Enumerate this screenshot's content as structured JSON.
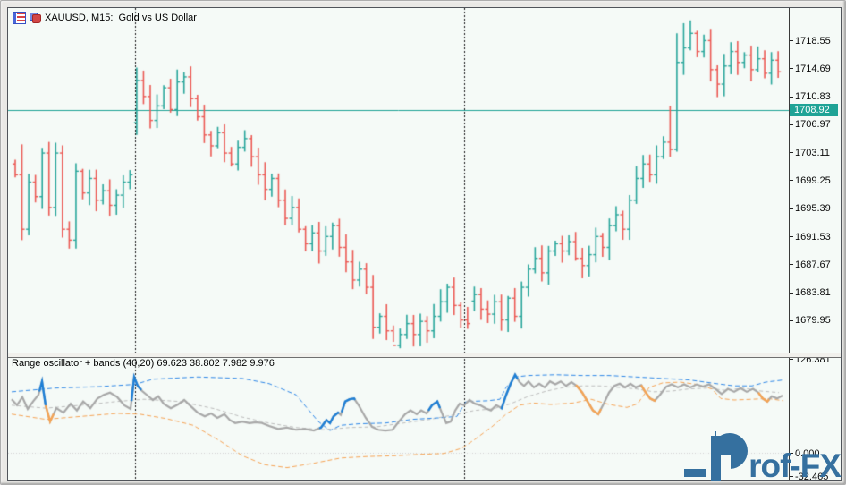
{
  "window": {
    "title": "XAUUSD, M15:  Gold vs US Dollar"
  },
  "indicator_label": "Range oscillator + bands (40,20) 69.623 38.802 7.982 9.976",
  "watermark_text": "rof-FX",
  "price_axis": {
    "ticks": [
      "1718.55",
      "1714.69",
      "1710.83",
      "1706.97",
      "1703.11",
      "1699.25",
      "1695.39",
      "1691.53",
      "1687.67",
      "1683.81",
      "1679.95"
    ],
    "current_price": "1708.92"
  },
  "sub_axis": {
    "top": "126.381",
    "zero": "0.000",
    "bottom": "-32.465"
  },
  "colors": {
    "bull": "#2aa79c",
    "bear": "#ec5a55",
    "price_line": "#1fa396",
    "separator": "#141414",
    "osc_main": "#a8a8a8",
    "osc_blue": "#1e7fd6",
    "osc_orange": "#f5a455",
    "band_upper": "#2f88e8",
    "band_lower": "#f5a455",
    "band_mid": "#bdbdbd",
    "zero_line": "#d2d2d2",
    "background": "#f5faf7"
  },
  "chart_data": {
    "type": "ohlc-bar",
    "symbol": "XAUUSD",
    "timeframe": "M15",
    "title": "Gold vs US Dollar",
    "price_line_value": 1708.92,
    "y_ticks": [
      1718.55,
      1714.69,
      1710.83,
      1706.97,
      1703.11,
      1699.25,
      1695.39,
      1691.53,
      1687.67,
      1683.81,
      1679.95
    ],
    "first_open": 1701.5,
    "closes": [
      1700.0,
      1692.5,
      1699.0,
      1697.0,
      1703.0,
      1695.5,
      1703.0,
      1692.5,
      1691.0,
      1700.5,
      1697.5,
      1699.5,
      1696.5,
      1697.8,
      1695.8,
      1697.2,
      1699.0,
      1700.0,
      1713.0,
      1710.8,
      1707.5,
      1709.5,
      1712.0,
      1709.0,
      1712.8,
      1713.5,
      1710.5,
      1708.0,
      1705.5,
      1704.0,
      1705.8,
      1703.0,
      1701.5,
      1703.8,
      1705.0,
      1702.5,
      1700.0,
      1698.0,
      1699.5,
      1696.5,
      1694.0,
      1695.5,
      1692.5,
      1690.5,
      1692.0,
      1689.5,
      1691.5,
      1693.0,
      1690.0,
      1688.0,
      1685.5,
      1687.0,
      1684.5,
      1679.0,
      1680.5,
      1678.5,
      1676.5,
      1678.0,
      1679.5,
      1678.0,
      1679.8,
      1678.5,
      1680.5,
      1682.5,
      1684.5,
      1682.0,
      1680.0,
      1679.5,
      1683.5,
      1681.5,
      1680.8,
      1682.5,
      1680.0,
      1683.0,
      1680.5,
      1684.5,
      1687.0,
      1688.5,
      1686.5,
      1689.5,
      1690.5,
      1689.5,
      1690.8,
      1688.5,
      1687.5,
      1689.0,
      1691.5,
      1690.0,
      1693.0,
      1694.5,
      1692.5,
      1696.5,
      1699.5,
      1701.5,
      1700.0,
      1702.5,
      1704.5,
      1703.5,
      1715.5,
      1717.5,
      1719.5,
      1717.0,
      1718.5,
      1714.5,
      1712.5,
      1715.0,
      1717.0,
      1715.5,
      1716.5,
      1714.5,
      1716.0,
      1714.0,
      1715.8,
      1714.2
    ],
    "gap_opens": {
      "18": 1707.2,
      "68": 1682.6
    },
    "hl_overrides": {
      "1": [
        1704.2,
        1691.0
      ],
      "53": [
        1686.2,
        1677.4
      ],
      "56": [
        null,
        1677.0
      ],
      "57": [
        null,
        1676.1
      ],
      "97": [
        1709.5,
        null
      ],
      "98": [
        1719.5,
        1703.2
      ],
      "99": [
        1720.9,
        null
      ],
      "100": [
        1721.3,
        null
      ]
    },
    "separators_x": [
      150,
      518
    ],
    "oscillator": {
      "scale": {
        "top_value": 126.381,
        "zero_value": 0.0
      },
      "main": [
        [
          12,
          72
        ],
        [
          18,
          64
        ],
        [
          24,
          75
        ],
        [
          30,
          59
        ],
        [
          36,
          69
        ],
        [
          42,
          78
        ],
        [
          46,
          96
        ],
        [
          50,
          64
        ],
        [
          55,
          42
        ],
        [
          62,
          60
        ],
        [
          70,
          54
        ],
        [
          78,
          66
        ],
        [
          85,
          57
        ],
        [
          92,
          69
        ],
        [
          100,
          60
        ],
        [
          108,
          73
        ],
        [
          115,
          78
        ],
        [
          122,
          81
        ],
        [
          130,
          75
        ],
        [
          138,
          64
        ],
        [
          145,
          59
        ],
        [
          149,
          102
        ],
        [
          153,
          90
        ],
        [
          158,
          83
        ],
        [
          164,
          77
        ],
        [
          170,
          71
        ],
        [
          176,
          76
        ],
        [
          182,
          66
        ],
        [
          190,
          60
        ],
        [
          198,
          65
        ],
        [
          205,
          71
        ],
        [
          212,
          63
        ],
        [
          220,
          54
        ],
        [
          228,
          49
        ],
        [
          235,
          53
        ],
        [
          242,
          47
        ],
        [
          250,
          52
        ],
        [
          256,
          44
        ],
        [
          262,
          40
        ],
        [
          270,
          42
        ],
        [
          278,
          40
        ],
        [
          285,
          41
        ],
        [
          292,
          40
        ],
        [
          300,
          36
        ],
        [
          310,
          32
        ],
        [
          320,
          34
        ],
        [
          330,
          31
        ],
        [
          340,
          32
        ],
        [
          350,
          30
        ],
        [
          358,
          34
        ],
        [
          364,
          44
        ],
        [
          368,
          40
        ],
        [
          372,
          49
        ],
        [
          377,
          54
        ],
        [
          380,
          51
        ],
        [
          385,
          69
        ],
        [
          390,
          72
        ],
        [
          395,
          73
        ],
        [
          400,
          64
        ],
        [
          408,
          47
        ],
        [
          415,
          35
        ],
        [
          422,
          31
        ],
        [
          430,
          30
        ],
        [
          438,
          31
        ],
        [
          445,
          42
        ],
        [
          452,
          52
        ],
        [
          458,
          57
        ],
        [
          465,
          52
        ],
        [
          470,
          57
        ],
        [
          476,
          53
        ],
        [
          482,
          64
        ],
        [
          488,
          69
        ],
        [
          493,
          54
        ],
        [
          498,
          40
        ],
        [
          503,
          42
        ],
        [
          508,
          57
        ],
        [
          513,
          66
        ],
        [
          518,
          64
        ],
        [
          524,
          71
        ],
        [
          530,
          66
        ],
        [
          536,
          64
        ],
        [
          542,
          60
        ],
        [
          548,
          57
        ],
        [
          554,
          64
        ],
        [
          560,
          60
        ],
        [
          565,
          78
        ],
        [
          570,
          93
        ],
        [
          575,
          105
        ],
        [
          580,
          95
        ],
        [
          585,
          90
        ],
        [
          590,
          96
        ],
        [
          596,
          88
        ],
        [
          602,
          93
        ],
        [
          608,
          88
        ],
        [
          614,
          96
        ],
        [
          620,
          92
        ],
        [
          626,
          96
        ],
        [
          632,
          90
        ],
        [
          638,
          95
        ],
        [
          644,
          90
        ],
        [
          650,
          81
        ],
        [
          656,
          69
        ],
        [
          662,
          57
        ],
        [
          668,
          52
        ],
        [
          674,
          66
        ],
        [
          680,
          81
        ],
        [
          686,
          90
        ],
        [
          692,
          93
        ],
        [
          698,
          88
        ],
        [
          704,
          93
        ],
        [
          710,
          88
        ],
        [
          716,
          91
        ],
        [
          720,
          83
        ],
        [
          726,
          73
        ],
        [
          731,
          70
        ],
        [
          737,
          78
        ],
        [
          744,
          89
        ],
        [
          750,
          92
        ],
        [
          757,
          88
        ],
        [
          764,
          92
        ],
        [
          771,
          88
        ],
        [
          778,
          92
        ],
        [
          785,
          89
        ],
        [
          792,
          92
        ],
        [
          799,
          86
        ],
        [
          806,
          79
        ],
        [
          813,
          86
        ],
        [
          820,
          82
        ],
        [
          827,
          87
        ],
        [
          834,
          82
        ],
        [
          841,
          86
        ],
        [
          847,
          81
        ],
        [
          852,
          73
        ],
        [
          857,
          69
        ],
        [
          862,
          76
        ],
        [
          868,
          73
        ],
        [
          874,
          77
        ]
      ],
      "upper": [
        [
          12,
          82
        ],
        [
          60,
          87
        ],
        [
          110,
          89
        ],
        [
          150,
          92
        ],
        [
          170,
          99
        ],
        [
          220,
          102
        ],
        [
          270,
          100
        ],
        [
          300,
          93
        ],
        [
          330,
          78
        ],
        [
          355,
          42
        ],
        [
          368,
          30
        ],
        [
          380,
          37
        ],
        [
          400,
          39
        ],
        [
          430,
          40
        ],
        [
          460,
          45
        ],
        [
          490,
          47
        ],
        [
          510,
          49
        ],
        [
          520,
          69
        ],
        [
          545,
          70
        ],
        [
          558,
          72
        ],
        [
          565,
          88
        ],
        [
          575,
          102
        ],
        [
          590,
          104
        ],
        [
          620,
          105
        ],
        [
          650,
          104
        ],
        [
          680,
          104
        ],
        [
          710,
          102
        ],
        [
          740,
          100
        ],
        [
          770,
          98
        ],
        [
          800,
          93
        ],
        [
          820,
          90
        ],
        [
          840,
          90
        ],
        [
          855,
          95
        ],
        [
          875,
          98
        ]
      ],
      "lower": [
        [
          12,
          52
        ],
        [
          50,
          45
        ],
        [
          90,
          49
        ],
        [
          130,
          53
        ],
        [
          155,
          52
        ],
        [
          185,
          46
        ],
        [
          215,
          37
        ],
        [
          245,
          16
        ],
        [
          270,
          -4
        ],
        [
          295,
          -16
        ],
        [
          320,
          -20
        ],
        [
          350,
          -14
        ],
        [
          380,
          -7
        ],
        [
          410,
          -5
        ],
        [
          440,
          -4
        ],
        [
          470,
          -2
        ],
        [
          495,
          -1
        ],
        [
          515,
          6
        ],
        [
          530,
          18
        ],
        [
          550,
          36
        ],
        [
          565,
          52
        ],
        [
          580,
          64
        ],
        [
          595,
          67
        ],
        [
          615,
          65
        ],
        [
          640,
          67
        ],
        [
          660,
          72
        ],
        [
          680,
          65
        ],
        [
          700,
          61
        ],
        [
          712,
          66
        ],
        [
          725,
          88
        ],
        [
          740,
          94
        ],
        [
          760,
          95
        ],
        [
          778,
          92
        ],
        [
          795,
          86
        ],
        [
          805,
          73
        ],
        [
          820,
          71
        ],
        [
          840,
          72
        ],
        [
          858,
          73
        ],
        [
          875,
          70
        ]
      ],
      "mid": [
        [
          12,
          64
        ],
        [
          50,
          60
        ],
        [
          90,
          64
        ],
        [
          130,
          69
        ],
        [
          160,
          72
        ],
        [
          200,
          69
        ],
        [
          240,
          59
        ],
        [
          270,
          48
        ],
        [
          300,
          40
        ],
        [
          330,
          34
        ],
        [
          360,
          31
        ],
        [
          390,
          34
        ],
        [
          420,
          35
        ],
        [
          450,
          40
        ],
        [
          480,
          45
        ],
        [
          510,
          52
        ],
        [
          530,
          57
        ],
        [
          550,
          59
        ],
        [
          570,
          66
        ],
        [
          590,
          76
        ],
        [
          610,
          83
        ],
        [
          630,
          88
        ],
        [
          650,
          90
        ],
        [
          670,
          90
        ],
        [
          690,
          88
        ],
        [
          710,
          86
        ],
        [
          730,
          82
        ],
        [
          750,
          83
        ],
        [
          770,
          86
        ],
        [
          790,
          87
        ],
        [
          810,
          84
        ],
        [
          830,
          87
        ],
        [
          850,
          83
        ],
        [
          870,
          81
        ]
      ],
      "blue_segments": [
        [
          43,
          50
        ],
        [
          146,
          157
        ],
        [
          356,
          378
        ],
        [
          381,
          396
        ],
        [
          478,
          491
        ],
        [
          559,
          578
        ]
      ],
      "orange_segments": [
        [
          50,
          59
        ],
        [
          643,
          671
        ],
        [
          716,
          732
        ],
        [
          847,
          859
        ]
      ]
    }
  }
}
